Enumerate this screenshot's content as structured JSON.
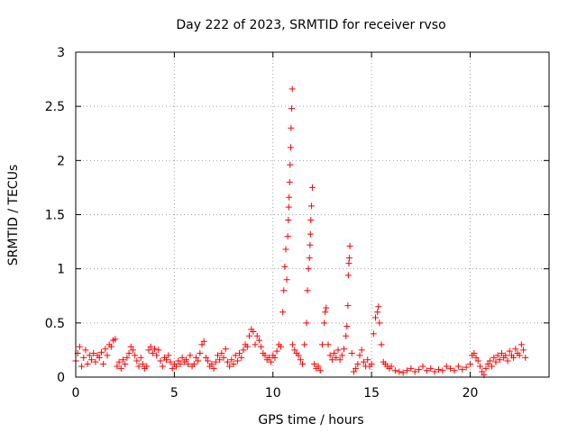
{
  "chart_data": {
    "type": "scatter",
    "title": "Day 222 of 2023, SRMTID for receiver rvso",
    "xlabel": "GPS time / hours",
    "ylabel": "SRMTID / TECUs",
    "xlim": [
      0,
      24
    ],
    "ylim": [
      0,
      3
    ],
    "x_ticks": [
      0,
      5,
      10,
      15,
      20
    ],
    "y_ticks": [
      0,
      0.5,
      1,
      1.5,
      2,
      2.5,
      3
    ],
    "x_tick_labels": [
      "0",
      "5",
      "10",
      "15",
      "20"
    ],
    "y_tick_labels": [
      "0",
      "0.5",
      "1",
      "1.5",
      "2",
      "2.5",
      "3"
    ],
    "grid": true,
    "marker": "+",
    "color": "#ff0000",
    "series": [
      {
        "name": "SRMTID",
        "points": [
          [
            0.0,
            0.15
          ],
          [
            0.1,
            0.22
          ],
          [
            0.2,
            0.28
          ],
          [
            0.3,
            0.1
          ],
          [
            0.4,
            0.18
          ],
          [
            0.5,
            0.25
          ],
          [
            0.6,
            0.12
          ],
          [
            0.7,
            0.2
          ],
          [
            0.8,
            0.16
          ],
          [
            0.9,
            0.22
          ],
          [
            1.0,
            0.14
          ],
          [
            1.1,
            0.2
          ],
          [
            1.2,
            0.18
          ],
          [
            1.3,
            0.23
          ],
          [
            1.4,
            0.12
          ],
          [
            1.5,
            0.26
          ],
          [
            1.6,
            0.2
          ],
          [
            1.7,
            0.3
          ],
          [
            1.8,
            0.28
          ],
          [
            1.9,
            0.34
          ],
          [
            2.0,
            0.35
          ],
          [
            2.1,
            0.1
          ],
          [
            2.2,
            0.14
          ],
          [
            2.3,
            0.08
          ],
          [
            2.4,
            0.16
          ],
          [
            2.5,
            0.12
          ],
          [
            2.6,
            0.18
          ],
          [
            2.7,
            0.22
          ],
          [
            2.8,
            0.28
          ],
          [
            2.9,
            0.25
          ],
          [
            3.0,
            0.2
          ],
          [
            3.1,
            0.15
          ],
          [
            3.2,
            0.1
          ],
          [
            3.3,
            0.18
          ],
          [
            3.4,
            0.12
          ],
          [
            3.5,
            0.08
          ],
          [
            3.6,
            0.1
          ],
          [
            3.7,
            0.25
          ],
          [
            3.8,
            0.28
          ],
          [
            3.9,
            0.22
          ],
          [
            4.0,
            0.26
          ],
          [
            4.1,
            0.2
          ],
          [
            4.2,
            0.25
          ],
          [
            4.3,
            0.15
          ],
          [
            4.4,
            0.1
          ],
          [
            4.5,
            0.18
          ],
          [
            4.6,
            0.16
          ],
          [
            4.7,
            0.2
          ],
          [
            4.8,
            0.14
          ],
          [
            4.9,
            0.08
          ],
          [
            5.0,
            0.12
          ],
          [
            5.1,
            0.1
          ],
          [
            5.2,
            0.15
          ],
          [
            5.3,
            0.12
          ],
          [
            5.4,
            0.18
          ],
          [
            5.5,
            0.14
          ],
          [
            5.6,
            0.16
          ],
          [
            5.7,
            0.12
          ],
          [
            5.8,
            0.2
          ],
          [
            5.9,
            0.1
          ],
          [
            6.0,
            0.12
          ],
          [
            6.1,
            0.18
          ],
          [
            6.2,
            0.15
          ],
          [
            6.3,
            0.22
          ],
          [
            6.4,
            0.3
          ],
          [
            6.5,
            0.33
          ],
          [
            6.6,
            0.18
          ],
          [
            6.7,
            0.15
          ],
          [
            6.8,
            0.1
          ],
          [
            6.9,
            0.12
          ],
          [
            7.0,
            0.08
          ],
          [
            7.1,
            0.14
          ],
          [
            7.2,
            0.2
          ],
          [
            7.3,
            0.16
          ],
          [
            7.4,
            0.22
          ],
          [
            7.5,
            0.18
          ],
          [
            7.6,
            0.26
          ],
          [
            7.7,
            0.14
          ],
          [
            7.8,
            0.1
          ],
          [
            7.9,
            0.16
          ],
          [
            8.0,
            0.12
          ],
          [
            8.1,
            0.2
          ],
          [
            8.2,
            0.15
          ],
          [
            8.3,
            0.22
          ],
          [
            8.4,
            0.18
          ],
          [
            8.5,
            0.25
          ],
          [
            8.6,
            0.3
          ],
          [
            8.7,
            0.28
          ],
          [
            8.8,
            0.38
          ],
          [
            8.9,
            0.44
          ],
          [
            9.0,
            0.42
          ],
          [
            9.1,
            0.3
          ],
          [
            9.2,
            0.38
          ],
          [
            9.3,
            0.34
          ],
          [
            9.4,
            0.28
          ],
          [
            9.5,
            0.22
          ],
          [
            9.6,
            0.2
          ],
          [
            9.7,
            0.16
          ],
          [
            9.8,
            0.18
          ],
          [
            9.9,
            0.14
          ],
          [
            10.0,
            0.2
          ],
          [
            10.1,
            0.18
          ],
          [
            10.2,
            0.24
          ],
          [
            10.3,
            0.3
          ],
          [
            10.4,
            0.28
          ],
          [
            10.5,
            0.6
          ],
          [
            10.55,
            0.8
          ],
          [
            10.6,
            1.02
          ],
          [
            10.65,
            1.18
          ],
          [
            10.7,
            0.9
          ],
          [
            10.75,
            1.3
          ],
          [
            10.78,
            1.45
          ],
          [
            10.8,
            1.57
          ],
          [
            10.82,
            1.66
          ],
          [
            10.85,
            1.8
          ],
          [
            10.87,
            1.96
          ],
          [
            10.9,
            2.12
          ],
          [
            10.92,
            2.3
          ],
          [
            10.95,
            2.48
          ],
          [
            10.98,
            2.66
          ],
          [
            11.0,
            0.3
          ],
          [
            11.1,
            0.25
          ],
          [
            11.2,
            0.22
          ],
          [
            11.3,
            0.2
          ],
          [
            11.4,
            0.16
          ],
          [
            11.5,
            0.12
          ],
          [
            11.6,
            0.3
          ],
          [
            11.7,
            0.5
          ],
          [
            11.75,
            0.8
          ],
          [
            11.8,
            1.0
          ],
          [
            11.85,
            1.1
          ],
          [
            11.88,
            1.22
          ],
          [
            11.9,
            1.32
          ],
          [
            11.92,
            1.45
          ],
          [
            11.95,
            1.58
          ],
          [
            12.0,
            1.75
          ],
          [
            12.1,
            0.12
          ],
          [
            12.2,
            0.08
          ],
          [
            12.3,
            0.1
          ],
          [
            12.4,
            0.06
          ],
          [
            12.5,
            0.3
          ],
          [
            12.6,
            0.5
          ],
          [
            12.65,
            0.6
          ],
          [
            12.7,
            0.64
          ],
          [
            12.8,
            0.3
          ],
          [
            12.9,
            0.2
          ],
          [
            13.0,
            0.16
          ],
          [
            13.1,
            0.22
          ],
          [
            13.2,
            0.18
          ],
          [
            13.3,
            0.25
          ],
          [
            13.4,
            0.16
          ],
          [
            13.5,
            0.2
          ],
          [
            13.6,
            0.26
          ],
          [
            13.7,
            0.38
          ],
          [
            13.75,
            0.47
          ],
          [
            13.8,
            0.66
          ],
          [
            13.82,
            0.94
          ],
          [
            13.85,
            1.05
          ],
          [
            13.87,
            1.1
          ],
          [
            13.9,
            1.21
          ],
          [
            14.0,
            0.22
          ],
          [
            14.1,
            0.05
          ],
          [
            14.2,
            0.08
          ],
          [
            14.3,
            0.12
          ],
          [
            14.4,
            0.2
          ],
          [
            14.5,
            0.25
          ],
          [
            14.6,
            0.14
          ],
          [
            14.7,
            0.1
          ],
          [
            14.8,
            0.16
          ],
          [
            14.9,
            0.1
          ],
          [
            15.0,
            0.12
          ],
          [
            15.1,
            0.4
          ],
          [
            15.2,
            0.55
          ],
          [
            15.3,
            0.6
          ],
          [
            15.35,
            0.65
          ],
          [
            15.4,
            0.5
          ],
          [
            15.5,
            0.3
          ],
          [
            15.6,
            0.14
          ],
          [
            15.7,
            0.12
          ],
          [
            15.8,
            0.1
          ],
          [
            15.9,
            0.08
          ],
          [
            16.0,
            0.1
          ],
          [
            16.2,
            0.06
          ],
          [
            16.4,
            0.05
          ],
          [
            16.6,
            0.04
          ],
          [
            16.8,
            0.06
          ],
          [
            17.0,
            0.08
          ],
          [
            17.2,
            0.05
          ],
          [
            17.4,
            0.07
          ],
          [
            17.6,
            0.1
          ],
          [
            17.8,
            0.06
          ],
          [
            18.0,
            0.08
          ],
          [
            18.2,
            0.05
          ],
          [
            18.4,
            0.07
          ],
          [
            18.6,
            0.06
          ],
          [
            18.8,
            0.1
          ],
          [
            19.0,
            0.08
          ],
          [
            19.2,
            0.06
          ],
          [
            19.4,
            0.1
          ],
          [
            19.6,
            0.07
          ],
          [
            19.8,
            0.09
          ],
          [
            20.0,
            0.12
          ],
          [
            20.1,
            0.2
          ],
          [
            20.2,
            0.22
          ],
          [
            20.3,
            0.18
          ],
          [
            20.4,
            0.15
          ],
          [
            20.5,
            0.1
          ],
          [
            20.6,
            0.05
          ],
          [
            20.7,
            0.02
          ],
          [
            20.8,
            0.08
          ],
          [
            20.9,
            0.12
          ],
          [
            21.0,
            0.15
          ],
          [
            21.1,
            0.1
          ],
          [
            21.2,
            0.18
          ],
          [
            21.3,
            0.14
          ],
          [
            21.4,
            0.2
          ],
          [
            21.5,
            0.16
          ],
          [
            21.6,
            0.22
          ],
          [
            21.7,
            0.18
          ],
          [
            21.8,
            0.2
          ],
          [
            21.9,
            0.15
          ],
          [
            22.0,
            0.24
          ],
          [
            22.1,
            0.2
          ],
          [
            22.2,
            0.18
          ],
          [
            22.3,
            0.26
          ],
          [
            22.4,
            0.22
          ],
          [
            22.5,
            0.2
          ],
          [
            22.6,
            0.3
          ],
          [
            22.7,
            0.25
          ],
          [
            22.8,
            0.18
          ]
        ]
      }
    ]
  }
}
